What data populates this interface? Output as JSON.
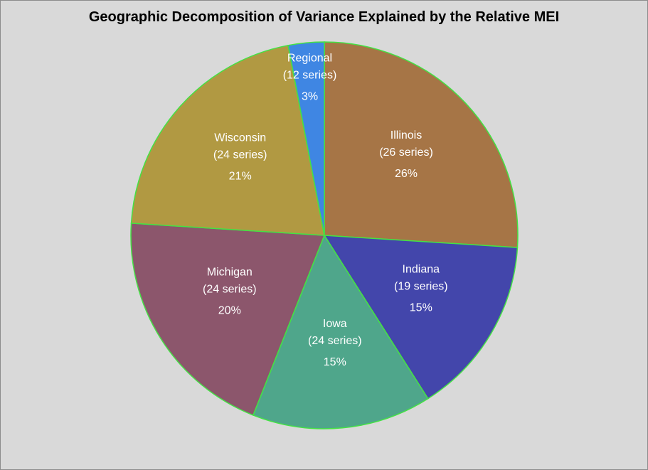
{
  "chart_data": {
    "type": "pie",
    "title": "Geographic Decomposition of Variance Explained by the Relative MEI",
    "slices": [
      {
        "name": "Illinois",
        "detail": "(26 series)",
        "value": 26,
        "value_label": "26%",
        "color": "#a67546"
      },
      {
        "name": "Indiana",
        "detail": "(19 series)",
        "value": 15,
        "value_label": "15%",
        "color": "#4346ab"
      },
      {
        "name": "Iowa",
        "detail": "(24 series)",
        "value": 15,
        "value_label": "15%",
        "color": "#4fa68b"
      },
      {
        "name": "Michigan",
        "detail": "(24 series)",
        "value": 20,
        "value_label": "20%",
        "color": "#8c566c"
      },
      {
        "name": "Wisconsin",
        "detail": "(24 series)",
        "value": 21,
        "value_label": "21%",
        "color": "#b19942"
      },
      {
        "name": "Regional",
        "detail": "(12 series)",
        "value": 3,
        "value_label": "3%",
        "color": "#3f86e3"
      }
    ],
    "slice_border_color": "#44e244",
    "background_color": "#d9d9d9"
  }
}
